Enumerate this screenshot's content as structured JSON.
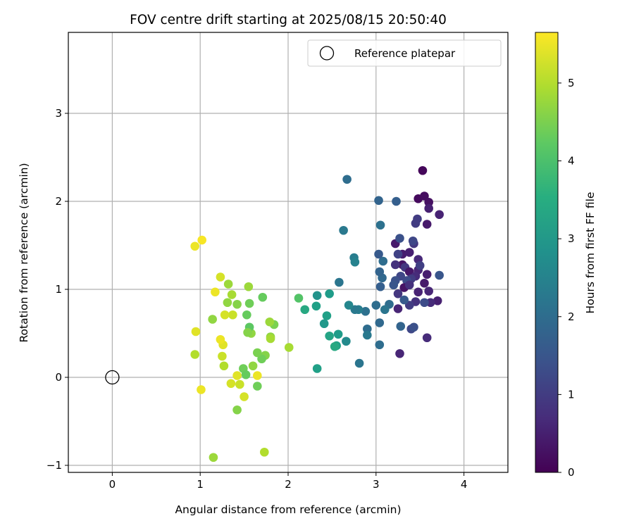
{
  "chart_data": {
    "type": "scatter",
    "title": "FOV centre drift starting at 2025/08/15 20:50:40",
    "xlabel": "Angular distance from reference (arcmin)",
    "ylabel": "Rotation from reference (arcmin)",
    "xlim": [
      -0.5,
      4.5
    ],
    "ylim": [
      -1.08,
      3.92
    ],
    "xticks": [
      0,
      1,
      2,
      3,
      4
    ],
    "yticks": [
      -1,
      0,
      1,
      2,
      3
    ],
    "grid": true,
    "legend": {
      "placement": "top-right",
      "entries": [
        "Reference platepar"
      ]
    },
    "reference_point": {
      "name": "Reference platepar",
      "x": 0,
      "y": 0,
      "marker": "hollow-circle"
    },
    "colorbar": {
      "label": "Hours from first FF file",
      "range": [
        0,
        5.65
      ],
      "ticks": [
        0,
        1,
        2,
        3,
        4,
        5
      ],
      "colormap": "viridis"
    },
    "points": [
      {
        "x": 3.53,
        "y": 2.35,
        "c": 0.1
      },
      {
        "x": 3.48,
        "y": 2.03,
        "c": 0.15
      },
      {
        "x": 3.55,
        "y": 2.06,
        "c": 0.2
      },
      {
        "x": 3.6,
        "y": 1.99,
        "c": 0.25
      },
      {
        "x": 3.6,
        "y": 1.92,
        "c": 0.5
      },
      {
        "x": 3.72,
        "y": 1.85,
        "c": 0.55
      },
      {
        "x": 3.58,
        "y": 1.74,
        "c": 0.4
      },
      {
        "x": 3.47,
        "y": 1.8,
        "c": 1.0
      },
      {
        "x": 3.45,
        "y": 1.75,
        "c": 1.0
      },
      {
        "x": 3.22,
        "y": 1.52,
        "c": 0.4
      },
      {
        "x": 3.3,
        "y": 1.4,
        "c": 0.45
      },
      {
        "x": 3.38,
        "y": 1.42,
        "c": 0.5
      },
      {
        "x": 3.43,
        "y": 1.52,
        "c": 0.9
      },
      {
        "x": 3.42,
        "y": 1.55,
        "c": 1.2
      },
      {
        "x": 3.27,
        "y": 1.58,
        "c": 1.4
      },
      {
        "x": 3.25,
        "y": 1.4,
        "c": 1.1
      },
      {
        "x": 3.48,
        "y": 1.34,
        "c": 0.65
      },
      {
        "x": 3.3,
        "y": 1.28,
        "c": 0.3
      },
      {
        "x": 3.22,
        "y": 1.28,
        "c": 0.8
      },
      {
        "x": 3.33,
        "y": 1.25,
        "c": 0.9
      },
      {
        "x": 3.38,
        "y": 1.2,
        "c": 0.35
      },
      {
        "x": 3.48,
        "y": 1.22,
        "c": 0.6
      },
      {
        "x": 3.5,
        "y": 1.27,
        "c": 1.05
      },
      {
        "x": 3.58,
        "y": 1.17,
        "c": 0.45
      },
      {
        "x": 3.45,
        "y": 1.15,
        "c": 0.7
      },
      {
        "x": 3.4,
        "y": 1.12,
        "c": 1.0
      },
      {
        "x": 3.35,
        "y": 1.1,
        "c": 1.3
      },
      {
        "x": 3.28,
        "y": 1.15,
        "c": 1.2
      },
      {
        "x": 3.22,
        "y": 1.1,
        "c": 1.4
      },
      {
        "x": 3.2,
        "y": 1.05,
        "c": 1.5
      },
      {
        "x": 3.32,
        "y": 1.02,
        "c": 0.3
      },
      {
        "x": 3.38,
        "y": 1.05,
        "c": 0.8
      },
      {
        "x": 3.48,
        "y": 0.97,
        "c": 0.55
      },
      {
        "x": 3.55,
        "y": 1.07,
        "c": 0.4
      },
      {
        "x": 3.6,
        "y": 0.98,
        "c": 0.6
      },
      {
        "x": 3.72,
        "y": 1.16,
        "c": 1.5
      },
      {
        "x": 3.7,
        "y": 0.87,
        "c": 0.5
      },
      {
        "x": 3.62,
        "y": 0.85,
        "c": 0.7
      },
      {
        "x": 3.55,
        "y": 0.85,
        "c": 1.3
      },
      {
        "x": 3.45,
        "y": 0.86,
        "c": 0.8
      },
      {
        "x": 3.38,
        "y": 0.82,
        "c": 1.0
      },
      {
        "x": 3.32,
        "y": 0.88,
        "c": 1.6
      },
      {
        "x": 3.25,
        "y": 0.95,
        "c": 0.9
      },
      {
        "x": 3.25,
        "y": 0.78,
        "c": 0.6
      },
      {
        "x": 3.15,
        "y": 0.83,
        "c": 2.0
      },
      {
        "x": 3.05,
        "y": 1.03,
        "c": 1.7
      },
      {
        "x": 3.07,
        "y": 1.13,
        "c": 1.9
      },
      {
        "x": 3.04,
        "y": 1.2,
        "c": 1.8
      },
      {
        "x": 3.08,
        "y": 1.32,
        "c": 2.0
      },
      {
        "x": 3.03,
        "y": 1.4,
        "c": 1.6
      },
      {
        "x": 3.05,
        "y": 1.73,
        "c": 2.1
      },
      {
        "x": 3.03,
        "y": 2.01,
        "c": 1.8
      },
      {
        "x": 3.23,
        "y": 2.0,
        "c": 1.7
      },
      {
        "x": 2.67,
        "y": 2.25,
        "c": 2.0
      },
      {
        "x": 2.63,
        "y": 1.67,
        "c": 2.3
      },
      {
        "x": 2.75,
        "y": 1.36,
        "c": 2.4
      },
      {
        "x": 2.76,
        "y": 1.31,
        "c": 2.5
      },
      {
        "x": 2.58,
        "y": 1.08,
        "c": 2.2
      },
      {
        "x": 3.0,
        "y": 0.82,
        "c": 2.0
      },
      {
        "x": 3.1,
        "y": 0.77,
        "c": 2.2
      },
      {
        "x": 3.04,
        "y": 0.62,
        "c": 1.9
      },
      {
        "x": 3.28,
        "y": 0.58,
        "c": 1.8
      },
      {
        "x": 3.4,
        "y": 0.55,
        "c": 1.2
      },
      {
        "x": 3.43,
        "y": 0.57,
        "c": 1.4
      },
      {
        "x": 3.58,
        "y": 0.45,
        "c": 0.7
      },
      {
        "x": 3.27,
        "y": 0.27,
        "c": 0.6
      },
      {
        "x": 3.04,
        "y": 0.37,
        "c": 2.0
      },
      {
        "x": 2.81,
        "y": 0.16,
        "c": 2.2
      },
      {
        "x": 2.9,
        "y": 0.55,
        "c": 2.0
      },
      {
        "x": 2.9,
        "y": 0.48,
        "c": 2.3
      },
      {
        "x": 2.88,
        "y": 0.75,
        "c": 2.1
      },
      {
        "x": 2.8,
        "y": 0.77,
        "c": 2.4
      },
      {
        "x": 2.76,
        "y": 0.77,
        "c": 2.3
      },
      {
        "x": 2.69,
        "y": 0.82,
        "c": 2.6
      },
      {
        "x": 2.66,
        "y": 0.41,
        "c": 2.7
      },
      {
        "x": 2.57,
        "y": 0.49,
        "c": 3.1
      },
      {
        "x": 2.55,
        "y": 0.36,
        "c": 3.2
      },
      {
        "x": 2.53,
        "y": 0.35,
        "c": 3.4
      },
      {
        "x": 2.47,
        "y": 0.47,
        "c": 3.3
      },
      {
        "x": 2.44,
        "y": 0.7,
        "c": 3.2
      },
      {
        "x": 2.41,
        "y": 0.61,
        "c": 3.0
      },
      {
        "x": 2.47,
        "y": 0.95,
        "c": 3.1
      },
      {
        "x": 2.33,
        "y": 0.93,
        "c": 2.9
      },
      {
        "x": 2.32,
        "y": 0.81,
        "c": 3.2
      },
      {
        "x": 2.19,
        "y": 0.77,
        "c": 3.4
      },
      {
        "x": 2.12,
        "y": 0.9,
        "c": 4.1
      },
      {
        "x": 2.33,
        "y": 0.1,
        "c": 3.2
      },
      {
        "x": 2.01,
        "y": 0.34,
        "c": 4.9
      },
      {
        "x": 1.84,
        "y": 0.6,
        "c": 4.5
      },
      {
        "x": 1.79,
        "y": 0.63,
        "c": 4.8
      },
      {
        "x": 1.8,
        "y": 0.46,
        "c": 4.7
      },
      {
        "x": 1.8,
        "y": 0.44,
        "c": 4.9
      },
      {
        "x": 1.71,
        "y": 0.91,
        "c": 4.3
      },
      {
        "x": 1.74,
        "y": 0.25,
        "c": 4.6
      },
      {
        "x": 1.7,
        "y": 0.21,
        "c": 4.4
      },
      {
        "x": 1.65,
        "y": 0.28,
        "c": 4.5
      },
      {
        "x": 1.6,
        "y": 0.13,
        "c": 4.7
      },
      {
        "x": 1.55,
        "y": 1.03,
        "c": 4.8
      },
      {
        "x": 1.56,
        "y": 0.84,
        "c": 4.4
      },
      {
        "x": 1.53,
        "y": 0.71,
        "c": 4.3
      },
      {
        "x": 1.58,
        "y": 0.5,
        "c": 4.7
      },
      {
        "x": 1.56,
        "y": 0.57,
        "c": 4.2
      },
      {
        "x": 1.54,
        "y": 0.51,
        "c": 4.6
      },
      {
        "x": 1.49,
        "y": 0.1,
        "c": 4.4
      },
      {
        "x": 1.52,
        "y": 0.03,
        "c": 4.3
      },
      {
        "x": 1.65,
        "y": -0.1,
        "c": 4.4
      },
      {
        "x": 1.65,
        "y": 0.02,
        "c": 5.5
      },
      {
        "x": 1.5,
        "y": -0.22,
        "c": 5.3
      },
      {
        "x": 1.45,
        "y": -0.08,
        "c": 5.2
      },
      {
        "x": 1.42,
        "y": 0.02,
        "c": 5.4
      },
      {
        "x": 1.35,
        "y": -0.07,
        "c": 5.3
      },
      {
        "x": 1.42,
        "y": -0.37,
        "c": 4.6
      },
      {
        "x": 1.73,
        "y": -0.85,
        "c": 5.0
      },
      {
        "x": 1.15,
        "y": -0.91,
        "c": 4.8
      },
      {
        "x": 1.01,
        "y": -0.14,
        "c": 5.5
      },
      {
        "x": 1.27,
        "y": 0.13,
        "c": 5.0
      },
      {
        "x": 1.25,
        "y": 0.24,
        "c": 5.2
      },
      {
        "x": 1.26,
        "y": 0.37,
        "c": 5.4
      },
      {
        "x": 1.23,
        "y": 0.43,
        "c": 5.5
      },
      {
        "x": 0.95,
        "y": 0.52,
        "c": 5.4
      },
      {
        "x": 0.94,
        "y": 0.26,
        "c": 5.0
      },
      {
        "x": 1.14,
        "y": 0.66,
        "c": 4.7
      },
      {
        "x": 1.31,
        "y": 0.85,
        "c": 4.7
      },
      {
        "x": 1.37,
        "y": 0.71,
        "c": 5.2
      },
      {
        "x": 1.28,
        "y": 0.71,
        "c": 5.3
      },
      {
        "x": 1.36,
        "y": 0.94,
        "c": 4.9
      },
      {
        "x": 1.32,
        "y": 1.06,
        "c": 4.8
      },
      {
        "x": 1.42,
        "y": 0.83,
        "c": 4.6
      },
      {
        "x": 1.17,
        "y": 0.97,
        "c": 5.5
      },
      {
        "x": 1.23,
        "y": 1.14,
        "c": 5.3
      },
      {
        "x": 0.94,
        "y": 1.49,
        "c": 5.5
      },
      {
        "x": 1.02,
        "y": 1.56,
        "c": 5.6
      }
    ]
  }
}
